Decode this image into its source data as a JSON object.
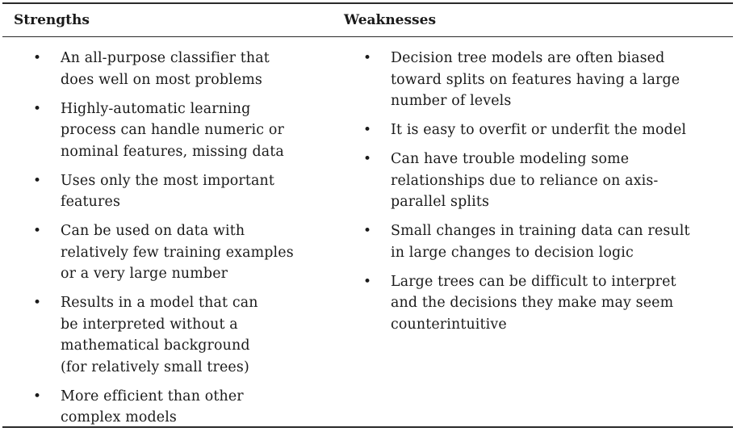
{
  "table": {
    "headers": {
      "strengths": "Strengths",
      "weaknesses": "Weaknesses"
    },
    "bullet_glyph": "•",
    "strengths": [
      "An all-purpose classifier that\ndoes well on most problems",
      "Highly-automatic learning\nprocess can handle numeric or\nnominal features, missing data",
      "Uses only the most important\nfeatures",
      "Can be used on data with\nrelatively few training examples\nor a very large number",
      "Results in a model that can\nbe interpreted without a\nmathematical background\n(for relatively small trees)",
      "More efficient than other\ncomplex models"
    ],
    "weaknesses": [
      "Decision tree models are often biased\ntoward splits on features having a large\nnumber of levels",
      "It is easy to overfit or underfit the model",
      "Can have trouble modeling some\nrelationships due to reliance on axis-\nparallel splits",
      "Small changes in training data can result\nin large changes to decision logic",
      "Large trees can be difficult to interpret\nand the decisions they make may seem\ncounterintuitive"
    ]
  }
}
